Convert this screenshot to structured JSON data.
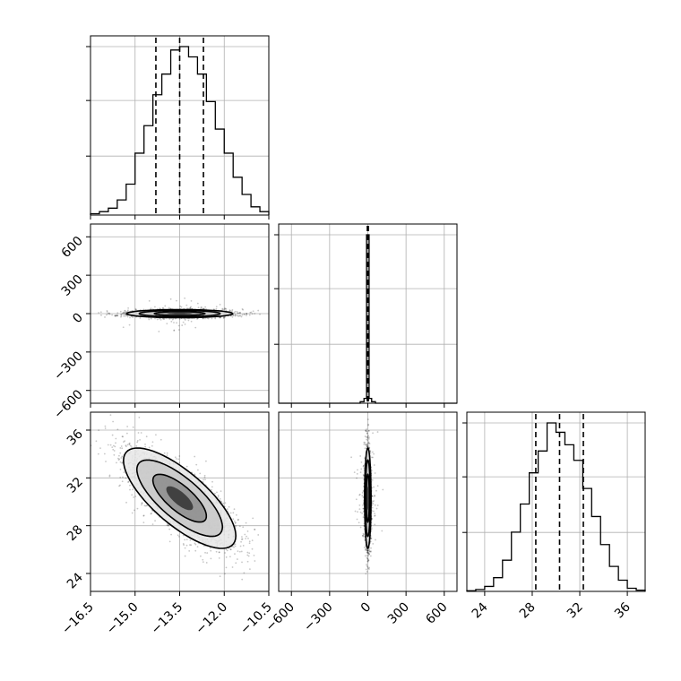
{
  "chart_data": {
    "type": "corner",
    "grid": true,
    "parameters": [
      {
        "range": [
          -16.5,
          -10.5
        ],
        "ticks": [
          "−16.5",
          "−15.0",
          "−13.5",
          "−12.0",
          "−10.5"
        ],
        "tick_values": [
          -16.5,
          -15.0,
          -13.5,
          -12.0,
          -10.5
        ],
        "quantiles": [
          -14.3,
          -13.5,
          -12.7
        ]
      },
      {
        "range": [
          -700,
          700
        ],
        "ticks": [
          "−600",
          "−300",
          "0",
          "300",
          "600"
        ],
        "tick_values": [
          -600,
          -300,
          0,
          300,
          600
        ],
        "quantiles": [
          -4,
          0,
          4
        ]
      },
      {
        "range": [
          22.5,
          37.5
        ],
        "ticks": [
          "24",
          "28",
          "32",
          "36"
        ],
        "tick_values": [
          24,
          28,
          32,
          36
        ],
        "quantiles": [
          28.3,
          30.3,
          32.3
        ]
      }
    ],
    "histograms": [
      {
        "param": 0,
        "bin_edges": [
          -16.5,
          -16.2,
          -15.9,
          -15.6,
          -15.3,
          -15.0,
          -14.7,
          -14.4,
          -14.1,
          -13.8,
          -13.5,
          -13.2,
          -12.9,
          -12.6,
          -12.3,
          -12.0,
          -11.7,
          -11.4,
          -11.1,
          -10.8,
          -10.5
        ],
        "counts": [
          2,
          5,
          10,
          22,
          45,
          90,
          130,
          175,
          205,
          240,
          245,
          230,
          205,
          165,
          125,
          90,
          55,
          30,
          12,
          5
        ]
      },
      {
        "param": 1,
        "bin_edges": [
          -700,
          -60,
          -30,
          -10,
          10,
          30,
          60,
          700
        ],
        "counts": [
          0,
          8,
          25,
          880,
          25,
          8,
          0
        ]
      },
      {
        "param": 2,
        "bin_edges": [
          22.5,
          23.25,
          24.0,
          24.75,
          25.5,
          26.25,
          27.0,
          27.75,
          28.5,
          29.25,
          30.0,
          30.75,
          31.5,
          32.25,
          33.0,
          33.75,
          34.5,
          35.25,
          36.0,
          36.75,
          37.5
        ],
        "counts": [
          1,
          3,
          8,
          22,
          50,
          95,
          140,
          190,
          225,
          270,
          255,
          235,
          210,
          165,
          120,
          75,
          40,
          18,
          5,
          2
        ]
      }
    ],
    "density_2d": [
      {
        "x_param": 0,
        "y_param": 1,
        "center": [
          -13.5,
          0
        ],
        "sigma": [
          0.85,
          15
        ],
        "correlation": 0.0,
        "samples": 2400
      },
      {
        "x_param": 0,
        "y_param": 2,
        "center": [
          -13.5,
          30.3
        ],
        "sigma": [
          0.9,
          2.0
        ],
        "correlation": -0.75,
        "samples": 2400
      },
      {
        "x_param": 1,
        "y_param": 2,
        "center": [
          0,
          30.3
        ],
        "sigma": [
          12,
          2.0
        ],
        "correlation": 0.0,
        "samples": 2400
      }
    ]
  }
}
